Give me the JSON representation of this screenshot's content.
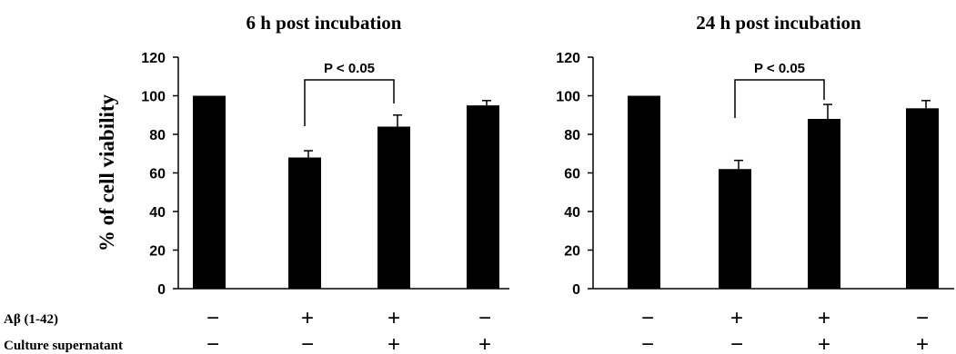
{
  "chart_data": [
    {
      "type": "bar",
      "title": "6 h post incubation",
      "ylabel": "% of cell viability",
      "ylim": [
        0,
        120
      ],
      "yticks": [
        "0",
        "20",
        "40",
        "60",
        "80",
        "100",
        "120"
      ],
      "values": [
        100,
        68,
        84,
        95
      ],
      "errors": [
        0,
        3.5,
        6,
        2.5
      ],
      "significance": {
        "from": 1,
        "to": 2,
        "label": "P < 0.05"
      },
      "color": "#000000"
    },
    {
      "type": "bar",
      "title": "24 h post incubation",
      "ylabel": "",
      "ylim": [
        0,
        120
      ],
      "yticks": [
        "0",
        "20",
        "40",
        "60",
        "80",
        "100",
        "120"
      ],
      "values": [
        100,
        62,
        88,
        93.5
      ],
      "errors": [
        0,
        4.5,
        7.5,
        4
      ],
      "significance": {
        "from": 1,
        "to": 2,
        "label": "P < 0.05"
      },
      "color": "#000000"
    }
  ],
  "treatments": {
    "rows": [
      {
        "label": "Aβ (1-42)",
        "signs": [
          "−",
          "+",
          "+",
          "−"
        ]
      },
      {
        "label": "Culture supernatant",
        "signs": [
          "−",
          "−",
          "+",
          "+"
        ]
      }
    ]
  }
}
